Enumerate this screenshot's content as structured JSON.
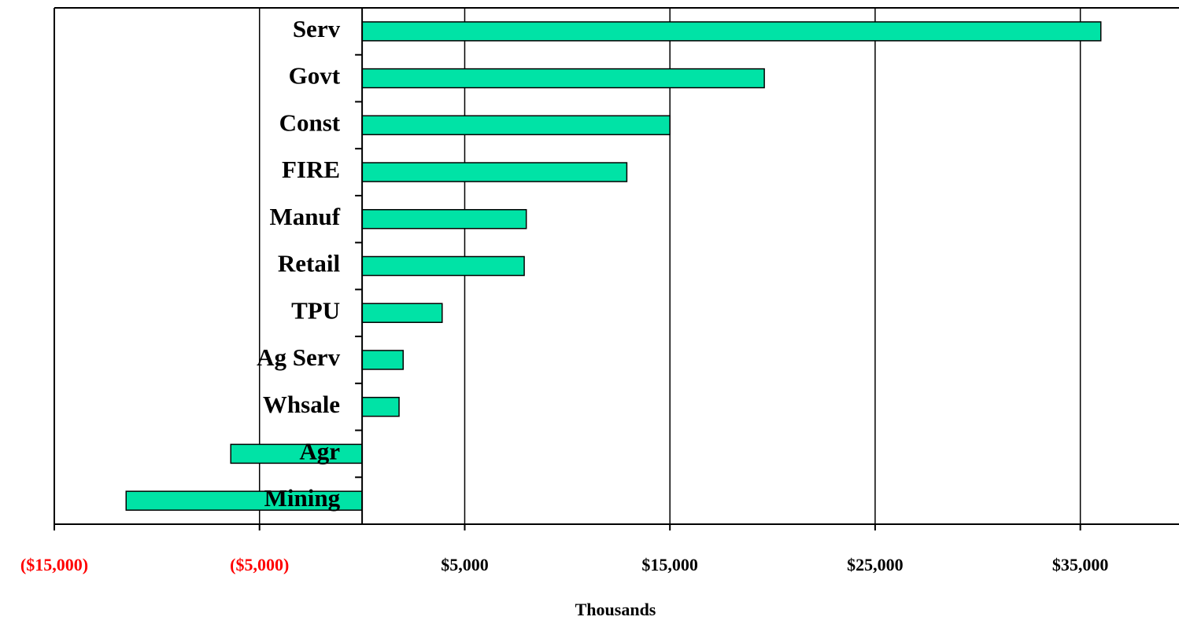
{
  "chart_data": {
    "type": "hbar",
    "x_label": "Thousands",
    "categories": [
      "Serv",
      "Govt",
      "Const",
      "FIRE",
      "Manuf",
      "Retail",
      "TPU",
      "Ag Serv",
      "Whsale",
      "Agr",
      "Mining"
    ],
    "values": [
      36000,
      19600,
      15000,
      12900,
      8000,
      7900,
      3900,
      2000,
      1800,
      -6400,
      -11500
    ],
    "color": "#00e3a6",
    "xlim": [
      -15000,
      40000
    ],
    "xticks": [
      {
        "value": -15000,
        "label": "($15,000)"
      },
      {
        "value": -5000,
        "label": "($5,000)"
      },
      {
        "value": 5000,
        "label": "$5,000"
      },
      {
        "value": 15000,
        "label": "$15,000"
      },
      {
        "value": 25000,
        "label": "$25,000"
      },
      {
        "value": 35000,
        "label": "$35,000"
      }
    ],
    "grid": true,
    "tick_label_color": "#000000",
    "negative_tick_label_color": "#ff0000"
  }
}
